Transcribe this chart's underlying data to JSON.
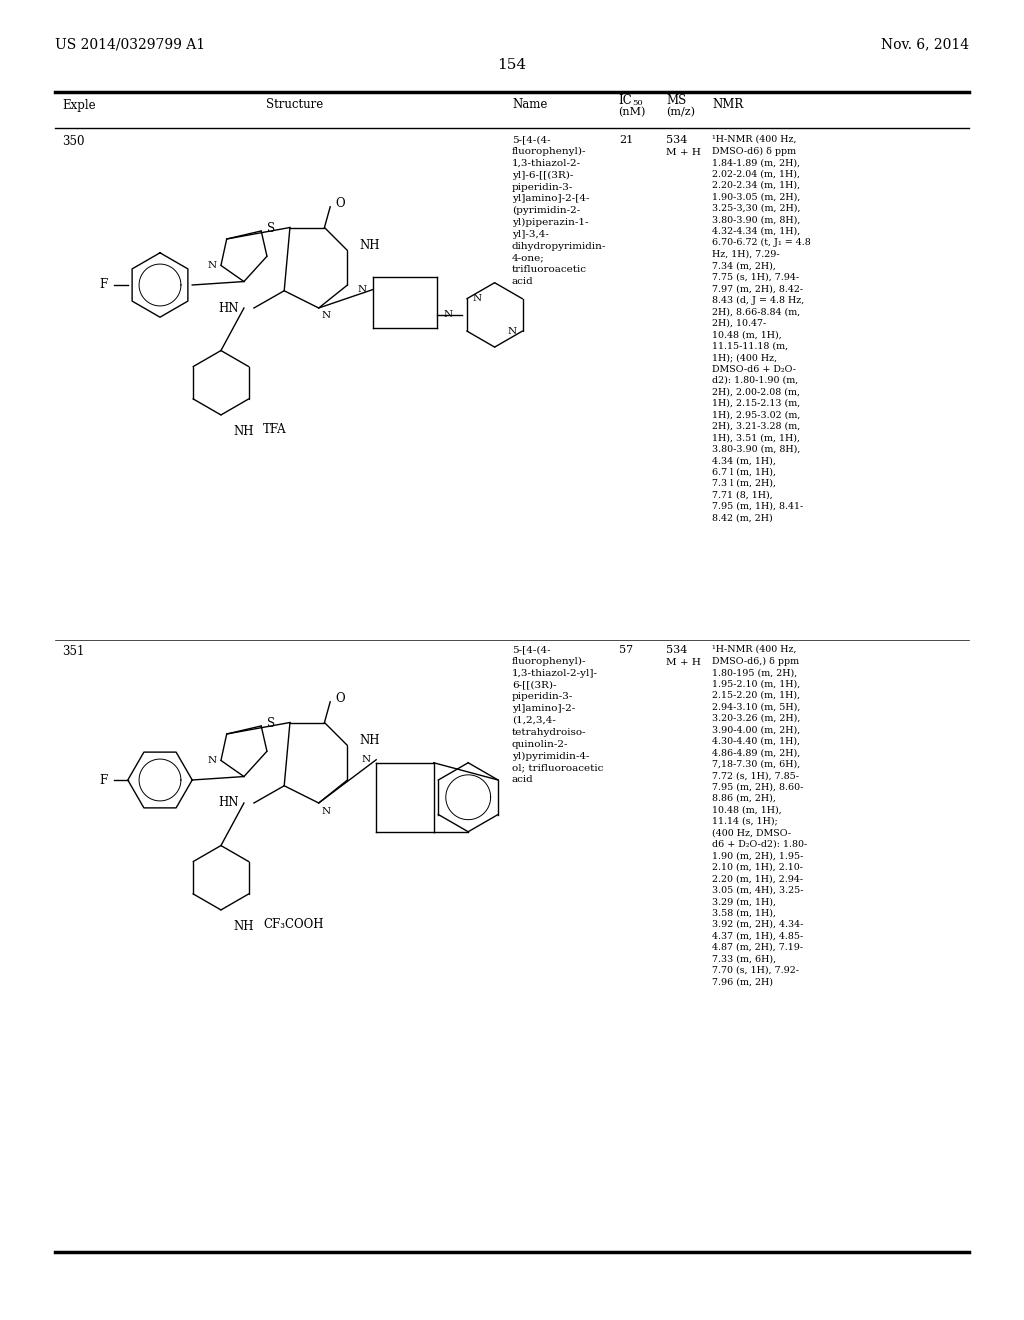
{
  "page_left": "US 2014/0329799 A1",
  "page_right": "Nov. 6, 2014",
  "page_number": "154",
  "rows": [
    {
      "exple": "350",
      "name": "5-[4-(4-\nfluorophenyl)-\n1,3-thiazol-2-\nyl]-6-[[(3R)-\npiperidin-3-\nyl]amino]-2-[4-\n(pyrimidin-2-\nyl)piperazin-1-\nyl]-3,4-\ndihydropyrimidin-\n4-one;\ntrifluoroacetic\nacid",
      "ic50": "21",
      "ms_val": "534",
      "ms_unit": "M + H",
      "nmr": "¹H-NMR (400 Hz,\nDMSO-d6) δ ppm\n1.84-1.89 (m, 2H),\n2.02-2.04 (m, 1H),\n2.20-2.34 (m, 1H),\n1.90-3.05 (m, 2H),\n3.25-3,30 (m, 2H),\n3.80-3.90 (m, 8H),\n4.32-4.34 (m, 1H),\n6.70-6.72 (t, J₁ = 4.8\nHz, 1H), 7.29-\n7.34 (m, 2H),\n7.75 (s, 1H), 7.94-\n7.97 (m, 2H), 8.42-\n8.43 (d, J = 4.8 Hz,\n2H), 8.66-8.84 (m,\n2H), 10.47-\n10.48 (m, 1H),\n11.15-11.18 (m,\n1H); (400 Hz,\nDMSO-d6 + D₂O-\nd2): 1.80-1.90 (m,\n2H), 2.00-2.08 (m,\n1H), 2.15-2.13 (m,\n1H), 2.95-3.02 (m,\n2H), 3.21-3.28 (m,\n1H), 3.51 (m, 1H),\n3.80-3.90 (m, 8H),\n4.34 (m, 1H),\n6.7 l (m, 1H),\n7.3 l (m, 2H),\n7.71 (8, 1H),\n7.95 (m, 1H), 8.41-\n8.42 (m, 2H)"
    },
    {
      "exple": "351",
      "name": "5-[4-(4-\nfluorophenyl)-\n1,3-thiazol-2-yl]-\n6-[[(3R)-\npiperidin-3-\nyl]amino]-2-\n(1,2,3,4-\ntetrahydroiso-\nquinolin-2-\nyl)pyrimidin-4-\nol; trifluoroacetic\nacid",
      "ic50": "57",
      "ms_val": "534",
      "ms_unit": "M + H",
      "nmr": "¹H-NMR (400 Hz,\nDMSO-d6,) δ ppm\n1.80-195 (m, 2H),\n1.95-2.10 (m, 1H),\n2.15-2.20 (m, 1H),\n2.94-3.10 (m, 5H),\n3.20-3.26 (m, 2H),\n3.90-4.00 (m, 2H),\n4.30-4.40 (m, 1H),\n4.86-4.89 (m, 2H),\n7,18-7.30 (m, 6H),\n7.72 (s, 1H), 7.85-\n7.95 (m, 2H), 8.60-\n8.86 (m, 2H),\n10.48 (m, 1H),\n11.14 (s, 1H);\n(400 Hz, DMSO-\nd6 + D₂O-d2): 1.80-\n1.90 (m, 2H), 1.95-\n2.10 (m, 1H), 2.10-\n2.20 (m, 1H), 2.94-\n3.05 (m, 4H), 3.25-\n3.29 (m, 1H),\n3.58 (m, 1H),\n3.92 (m, 2H), 4.34-\n4.37 (m, 1H), 4.85-\n4.87 (m, 2H), 7.19-\n7.33 (m, 6H),\n7.70 (s, 1H), 7.92-\n7.96 (m, 2H)"
    }
  ],
  "background_color": "#ffffff",
  "text_color": "#000000"
}
